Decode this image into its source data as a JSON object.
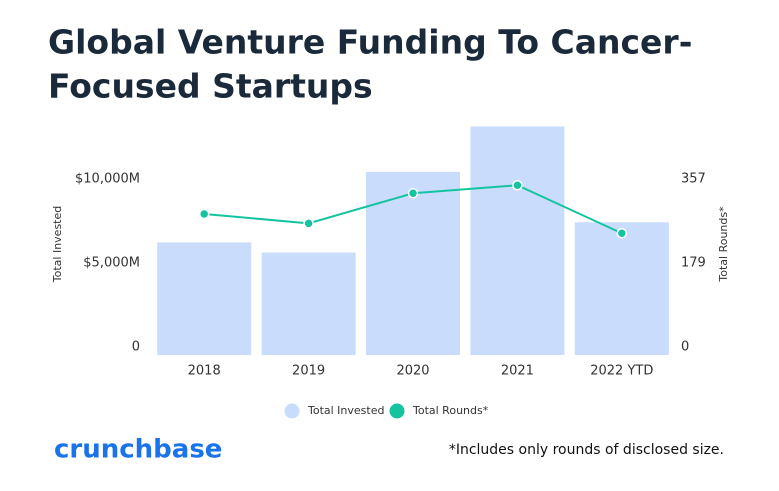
{
  "chart_data": {
    "type": "bar_line",
    "title": [
      "Global Venture Funding To Cancer-",
      "Focused Startups"
    ],
    "categories": [
      "2018",
      "2019",
      "2020",
      "2021",
      "2022 YTD"
    ],
    "series": [
      {
        "name": "Total Invested",
        "color": "#cadcfc",
        "values": [
          6700,
          6100,
          10900,
          13600,
          7900
        ]
      },
      {
        "name": "Total Rounds*",
        "color": "#14c4a1",
        "axis": "y2",
        "values": [
          300,
          280,
          344,
          361,
          259
        ]
      }
    ],
    "ylabel": "Total Invested",
    "y2label": "Total Rounds*",
    "ylim": [
      0,
      13600
    ],
    "yticks": [
      {
        "value": 0,
        "label": "0"
      },
      {
        "value": 5000,
        "label": "$5,000M"
      },
      {
        "value": 10000,
        "label": "$10,000M"
      }
    ],
    "y2lim": [
      0,
      486
    ],
    "y2ticks": [
      0,
      179,
      357
    ],
    "footnote": "*Includes only rounds of disclosed size.",
    "brand": "crunchbase"
  }
}
